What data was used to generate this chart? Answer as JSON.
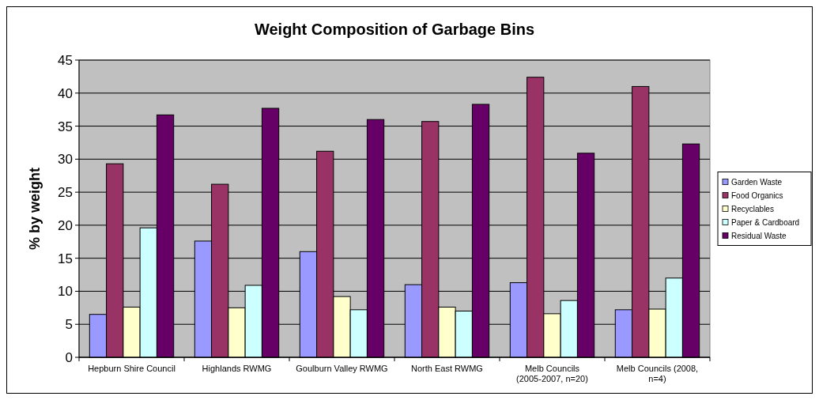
{
  "chart_data": {
    "type": "bar",
    "title": "Weight Composition of Garbage Bins",
    "ylabel": "% by weight",
    "categories": [
      "Hepburn Shire Council",
      "Highlands RWMG",
      "Goulburn Valley RWMG",
      "North East RWMG",
      "Melb Councils (2005-2007, n=20)",
      "Melb Councils (2008, n=4)"
    ],
    "series": [
      {
        "name": "Garden Waste",
        "color": "#9999ff",
        "values": [
          6.5,
          17.6,
          16.0,
          11.0,
          11.3,
          7.2
        ]
      },
      {
        "name": "Food Organics",
        "color": "#993366",
        "values": [
          29.3,
          26.2,
          31.2,
          35.7,
          42.4,
          41.0
        ]
      },
      {
        "name": "Recyclables",
        "color": "#ffffcc",
        "values": [
          7.6,
          7.5,
          9.2,
          7.6,
          6.6,
          7.3
        ]
      },
      {
        "name": "Paper & Cardboard",
        "color": "#ccffff",
        "values": [
          19.6,
          10.9,
          7.2,
          7.0,
          8.6,
          12.0
        ]
      },
      {
        "name": "Residual Waste",
        "color": "#660066",
        "values": [
          36.7,
          37.7,
          36.0,
          38.3,
          30.9,
          32.3
        ]
      }
    ],
    "ylim": [
      0,
      45
    ],
    "yticks": [
      0,
      5,
      10,
      15,
      20,
      25,
      30,
      35,
      40,
      45
    ],
    "grid": "y",
    "legend": "right"
  }
}
